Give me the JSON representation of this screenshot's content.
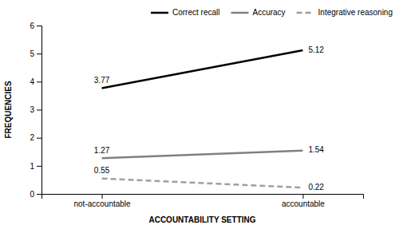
{
  "chart_data": {
    "type": "line",
    "categories": [
      "not-accountable",
      "accountable"
    ],
    "series": [
      {
        "name": "Correct recall",
        "color": "#000000",
        "line_style": "solid",
        "values": [
          3.77,
          5.12
        ]
      },
      {
        "name": "Accuracy",
        "color": "#808080",
        "line_style": "solid",
        "values": [
          1.27,
          1.54
        ]
      },
      {
        "name": "Integrative reasoning",
        "color": "#a0a0a0",
        "line_style": "dashed",
        "values": [
          0.55,
          0.22
        ]
      }
    ],
    "xlabel": "ACCOUNTABILITY SETTING",
    "ylabel": "FREQUENCIES",
    "ylim": [
      0,
      6
    ],
    "yticks": [
      0,
      1,
      2,
      3,
      4,
      5,
      6
    ],
    "grid": false,
    "legend": "top-right",
    "data_labels": true
  }
}
